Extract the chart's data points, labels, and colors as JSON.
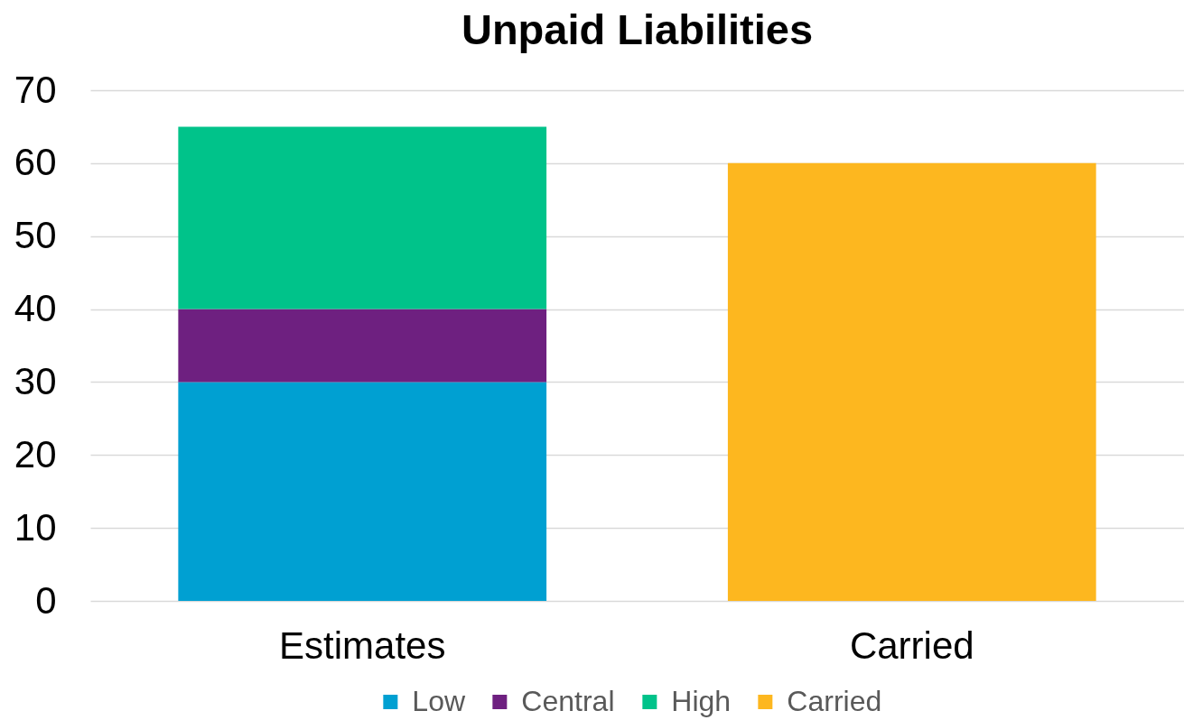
{
  "chart_data": {
    "type": "bar",
    "title": "Unpaid Liabilities",
    "categories": [
      "Estimates",
      "Carried"
    ],
    "series": [
      {
        "name": "Low",
        "color": "#00a0d2",
        "values": [
          30,
          null
        ]
      },
      {
        "name": "Central",
        "color": "#6e2080",
        "values": [
          10,
          null
        ]
      },
      {
        "name": "High",
        "color": "#00c38a",
        "values": [
          25,
          null
        ]
      },
      {
        "name": "Carried",
        "color": "#fdb71f",
        "values": [
          null,
          60
        ]
      }
    ],
    "stacked": true,
    "ylim": [
      0,
      70
    ],
    "yticks": [
      0,
      10,
      20,
      30,
      40,
      50,
      60,
      70
    ],
    "grid": "y",
    "legend": "bottom"
  }
}
